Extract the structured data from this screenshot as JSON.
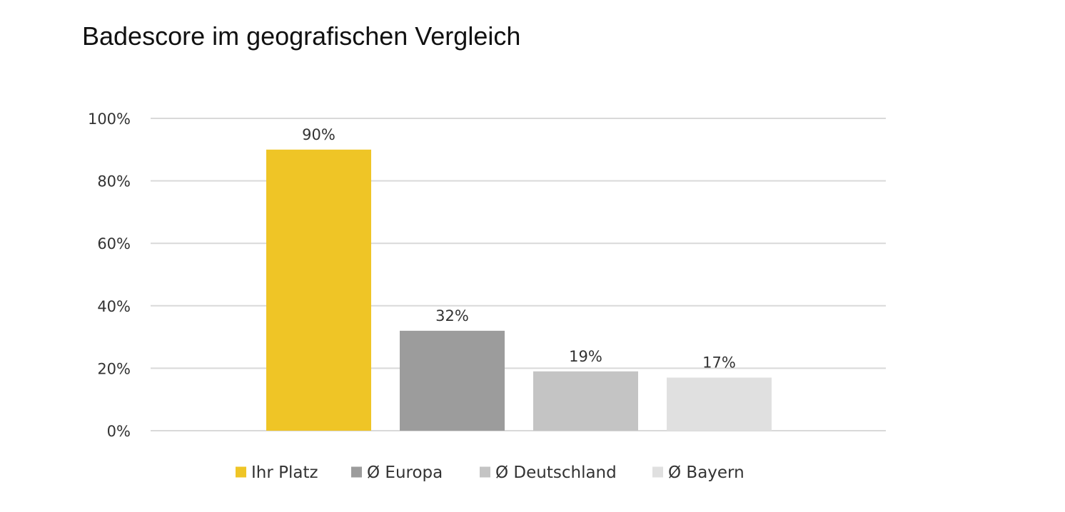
{
  "chart_data": {
    "type": "bar",
    "title": "Badescore im geografischen Vergleich",
    "categories": [
      "Ihr Platz",
      "Ø Europa",
      "Ø Deutschland",
      "Ø Bayern"
    ],
    "values": [
      90,
      32,
      19,
      17
    ],
    "data_labels": [
      "90%",
      "32%",
      "19%",
      "17%"
    ],
    "colors": [
      "#EFC526",
      "#9C9C9C",
      "#C4C4C4",
      "#E0E0E0"
    ],
    "ylim": [
      0,
      100
    ],
    "yticks": [
      0,
      20,
      40,
      60,
      80,
      100
    ],
    "ytick_labels": [
      "0%",
      "20%",
      "40%",
      "60%",
      "80%",
      "100%"
    ],
    "grid": true,
    "legend": {
      "position": "bottom",
      "entries": [
        "Ihr Platz",
        "Ø Europa",
        "Ø Deutschland",
        "Ø Bayern"
      ]
    }
  }
}
